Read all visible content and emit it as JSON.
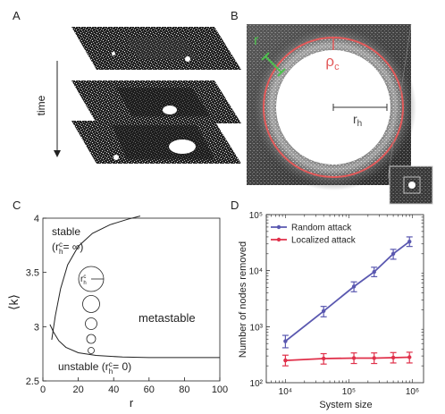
{
  "panels": {
    "a": {
      "letter": "A",
      "axis_label": "time"
    },
    "b": {
      "letter": "B",
      "label_r": "r",
      "label_rho": "ρ",
      "label_rho_sub": "c",
      "label_rh": "r",
      "label_rh_sub": "h"
    },
    "c": {
      "letter": "C",
      "region_stable": "stable",
      "stable_cond": "(r",
      "stable_cond_sup": "c",
      "stable_cond_sub": "h",
      "stable_cond_rest": "= ∞)",
      "region_metastable": "metastable",
      "region_unstable": "unstable (r",
      "unstable_sup": "c",
      "unstable_sub": "h",
      "unstable_rest": "= 0)",
      "circle_label": "r",
      "circle_sup": "c",
      "circle_sub": "h"
    },
    "d": {
      "letter": "D"
    }
  },
  "chart_data": [
    {
      "panel": "C",
      "type": "line",
      "xlabel": "r",
      "ylabel": "⟨k⟩",
      "xlim": [
        0,
        100
      ],
      "ylim": [
        2.5,
        4.0
      ],
      "x_ticks": [
        0,
        20,
        40,
        60,
        80,
        100
      ],
      "y_ticks": [
        2.5,
        3,
        3.5,
        4
      ],
      "x_tick_labels": [
        "0",
        "20",
        "40",
        "60",
        "80",
        "100"
      ],
      "y_tick_labels": [
        "2.5",
        "3",
        "3.5",
        "4"
      ],
      "series": [
        {
          "x": [
            5,
            7,
            10,
            14,
            20,
            28,
            38,
            48,
            55
          ],
          "values": [
            2.88,
            3.1,
            3.35,
            3.57,
            3.74,
            3.86,
            3.94,
            3.99,
            4.02
          ]
        },
        {
          "x": [
            4,
            6,
            9,
            13,
            20,
            30,
            45,
            60,
            80,
            100
          ],
          "values": [
            3.02,
            2.95,
            2.87,
            2.81,
            2.76,
            2.735,
            2.72,
            2.715,
            2.715,
            2.715
          ]
        }
      ]
    },
    {
      "panel": "D",
      "type": "line",
      "xlabel": "System size",
      "ylabel": "Number of nodes removed",
      "x_scale": "log",
      "y_scale": "log",
      "xlim": [
        5000,
        1500000
      ],
      "ylim": [
        100,
        100000
      ],
      "x_tick_labels": [
        "10⁴",
        "10⁵",
        "10⁶"
      ],
      "x_ticks": [
        10000,
        100000,
        1000000
      ],
      "y_tick_labels": [
        "10²",
        "10³",
        "10⁴",
        "10⁵"
      ],
      "y_ticks": [
        100,
        1000,
        10000,
        100000
      ],
      "legend_position": "top-left",
      "series": [
        {
          "name": "Random attack",
          "color": "#5a58b0",
          "x": [
            10000,
            40000,
            120000,
            250000,
            500000,
            900000
          ],
          "values": [
            550,
            1900,
            5200,
            9500,
            20000,
            33000
          ],
          "err_low": [
            420,
            1500,
            4200,
            7800,
            16000,
            27000
          ],
          "err_high": [
            700,
            2300,
            6300,
            11500,
            24000,
            40000
          ]
        },
        {
          "name": "Localized attack",
          "color": "#e0304a",
          "x": [
            10000,
            40000,
            120000,
            250000,
            500000,
            900000
          ],
          "values": [
            250,
            270,
            275,
            275,
            280,
            285
          ],
          "err_low": [
            200,
            215,
            220,
            220,
            225,
            225
          ],
          "err_high": [
            310,
            330,
            340,
            340,
            345,
            350
          ]
        }
      ]
    }
  ]
}
